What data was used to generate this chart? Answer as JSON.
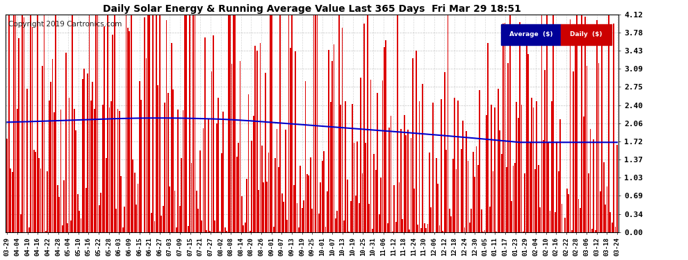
{
  "title": "Daily Solar Energy & Running Average Value Last 365 Days  Fri Mar 29 18:51",
  "copyright": "Copyright 2019 Cartronics.com",
  "legend_label_avg": "Average  ($)",
  "legend_label_daily": "Daily  ($)",
  "legend_color_avg": "#0000cc",
  "legend_color_daily": "#cc0000",
  "bar_color": "#dd0000",
  "line_color": "#0000cc",
  "bg_color": "#ffffff",
  "plot_bg_color": "#ffffff",
  "grid_color": "#999999",
  "yticks": [
    0.0,
    0.34,
    0.69,
    1.03,
    1.37,
    1.72,
    2.06,
    2.4,
    2.75,
    3.09,
    3.43,
    3.78,
    4.12
  ],
  "ylim": [
    0.0,
    4.46
  ],
  "x_labels": [
    "03-29",
    "04-04",
    "04-10",
    "04-16",
    "04-22",
    "04-28",
    "05-04",
    "05-10",
    "05-16",
    "05-22",
    "05-28",
    "06-03",
    "06-09",
    "06-15",
    "06-21",
    "06-27",
    "07-03",
    "07-09",
    "07-15",
    "07-21",
    "07-27",
    "08-02",
    "08-08",
    "08-14",
    "08-20",
    "08-26",
    "09-01",
    "09-07",
    "09-13",
    "09-19",
    "09-25",
    "10-01",
    "10-07",
    "10-13",
    "10-19",
    "10-25",
    "10-31",
    "11-06",
    "11-12",
    "11-18",
    "11-24",
    "11-30",
    "12-06",
    "12-12",
    "12-18",
    "12-24",
    "12-30",
    "01-05",
    "01-11",
    "01-17",
    "01-23",
    "01-29",
    "02-04",
    "02-10",
    "02-16",
    "02-22",
    "02-28",
    "03-06",
    "03-12",
    "03-18",
    "03-24"
  ],
  "figsize": [
    9.9,
    3.75
  ],
  "dpi": 100
}
